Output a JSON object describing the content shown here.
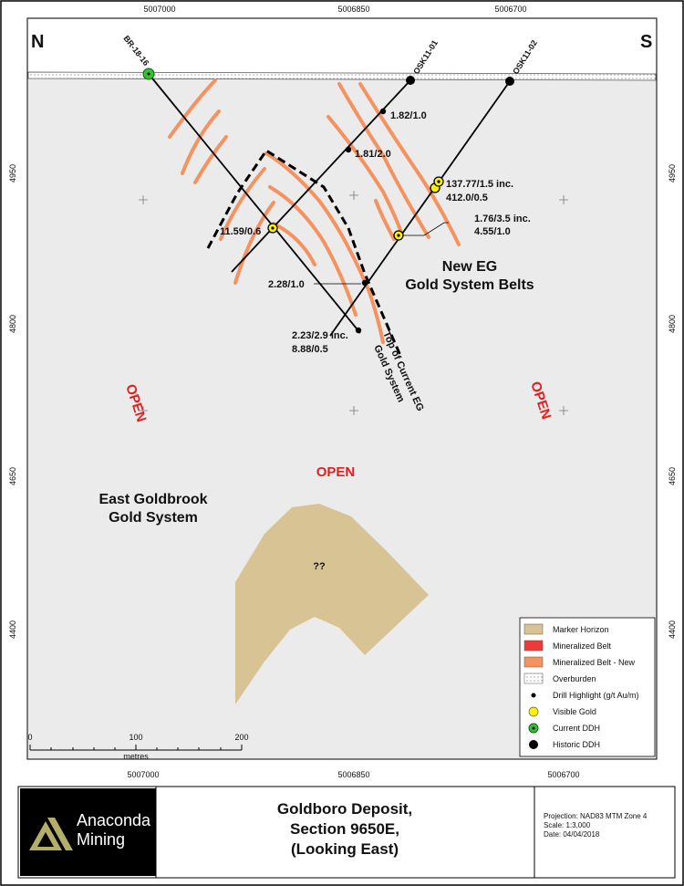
{
  "compass": {
    "north": "N",
    "south": "S"
  },
  "axes": {
    "top": [
      "5007000",
      "5006850",
      "5006700"
    ],
    "bottom": [
      "5007000",
      "5006850",
      "5006700"
    ],
    "left": [
      "4950",
      "4800",
      "4650",
      "4400"
    ],
    "right": [
      "4950",
      "4800",
      "4650",
      "4400"
    ]
  },
  "drill_holes": [
    "BR-18-16",
    "OSK11-01",
    "OSK11-02"
  ],
  "intercepts": {
    "a": "1.82/1.0",
    "b": "1.81/2.0",
    "c": [
      "137.77/1.5 inc.",
      "412.0/0.5"
    ],
    "d": [
      "1.76/3.5 inc.",
      "4.55/1.0"
    ],
    "e": "11.59/0.6",
    "f": "2.28/1.0",
    "g": [
      "2.23/2.9 inc.",
      "8.88/0.5"
    ]
  },
  "annotations": {
    "new_belts": [
      "New EG",
      "Gold System Belts"
    ],
    "top_current": [
      "Top of Current EG",
      "Gold System"
    ],
    "opens": [
      "OPEN",
      "OPEN",
      "OPEN"
    ],
    "east_goldbrook": [
      "East Goldbrook",
      "Gold System"
    ],
    "unknown": "??"
  },
  "legend": [
    "Marker Horizon",
    "Mineralized Belt",
    "Mineralized Belt - New",
    "Overburden",
    "Drill Highlight (g/t Au/m)",
    "Visible Gold",
    "Current DDH",
    "Historic DDH"
  ],
  "scale_bar": {
    "ticks": [
      "0",
      "100",
      "200"
    ],
    "unit": "metres"
  },
  "title_block": {
    "company": [
      "Anaconda",
      "Mining"
    ],
    "title": [
      "Goldboro Deposit,",
      "Section 9650E,",
      "(Looking East)"
    ],
    "info": [
      "Projection: NAD83 MTM Zone 4",
      "Scale: 1:3,000",
      "Date: 04/04/2018"
    ]
  }
}
